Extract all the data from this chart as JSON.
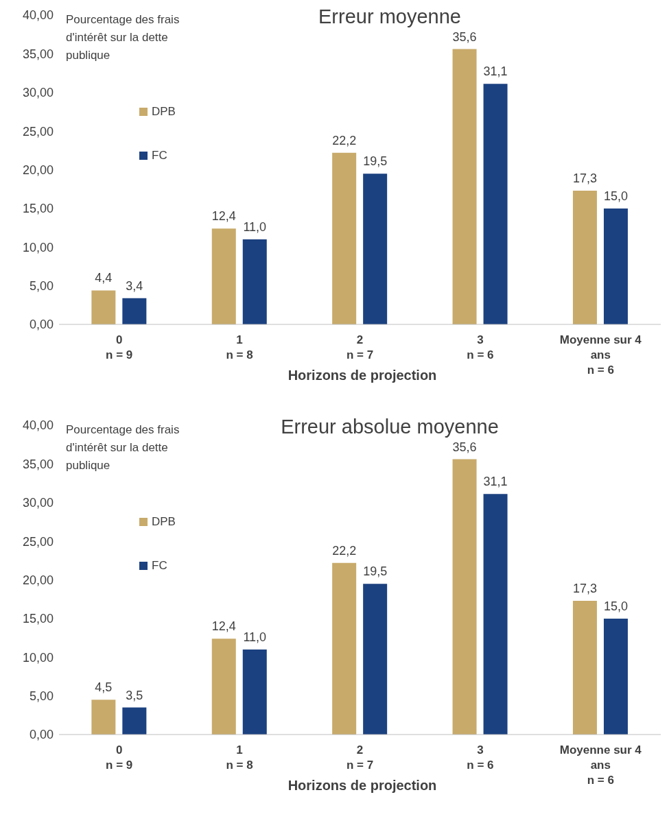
{
  "chart_data": [
    {
      "type": "bar",
      "title": "Erreur moyenne",
      "ylabel": "Pourcentage des frais d'intérêt sur la dette publique",
      "xlabel": "Horizons de projection",
      "categories": [
        "0\nn = 9",
        "1\nn = 8",
        "2\nn = 7",
        "3\nn = 6",
        "Moyenne sur 4 ans\nn = 6"
      ],
      "ylim": [
        0,
        40
      ],
      "yticks": [
        {
          "value": 0,
          "label": "0,00"
        },
        {
          "value": 5,
          "label": "5,00"
        },
        {
          "value": 10,
          "label": "10,00"
        },
        {
          "value": 15,
          "label": "15,00"
        },
        {
          "value": 20,
          "label": "20,00"
        },
        {
          "value": 25,
          "label": "25,00"
        },
        {
          "value": 30,
          "label": "30,00"
        },
        {
          "value": 35,
          "label": "35,00"
        },
        {
          "value": 40,
          "label": "40,00"
        }
      ],
      "legend": "top left",
      "series": [
        {
          "name": "DPB",
          "color": "#c8aa6a",
          "values": [
            4.4,
            12.4,
            22.2,
            35.6,
            17.3
          ],
          "value_labels": [
            "4,4",
            "12,4",
            "22,2",
            "35,6",
            "17,3"
          ]
        },
        {
          "name": "FC",
          "color": "#1b4180",
          "values": [
            3.4,
            11.0,
            19.5,
            31.1,
            15.0
          ],
          "value_labels": [
            "3,4",
            "11,0",
            "19,5",
            "31,1",
            "15,0"
          ]
        }
      ]
    },
    {
      "type": "bar",
      "title": "Erreur absolue moyenne",
      "ylabel": "Pourcentage des frais d'intérêt sur la dette publique",
      "xlabel": "Horizons de projection",
      "categories": [
        "0\nn = 9",
        "1\nn = 8",
        "2\nn = 7",
        "3\nn = 6",
        "Moyenne sur 4 ans\nn = 6"
      ],
      "ylim": [
        0,
        40
      ],
      "yticks": [
        {
          "value": 0,
          "label": "0,00"
        },
        {
          "value": 5,
          "label": "5,00"
        },
        {
          "value": 10,
          "label": "10,00"
        },
        {
          "value": 15,
          "label": "15,00"
        },
        {
          "value": 20,
          "label": "20,00"
        },
        {
          "value": 25,
          "label": "25,00"
        },
        {
          "value": 30,
          "label": "30,00"
        },
        {
          "value": 35,
          "label": "35,00"
        },
        {
          "value": 40,
          "label": "40,00"
        }
      ],
      "legend": "top left",
      "series": [
        {
          "name": "DPB",
          "color": "#c8aa6a",
          "values": [
            4.5,
            12.4,
            22.2,
            35.6,
            17.3
          ],
          "value_labels": [
            "4,5",
            "12,4",
            "22,2",
            "35,6",
            "17,3"
          ]
        },
        {
          "name": "FC",
          "color": "#1b4180",
          "values": [
            3.5,
            11.0,
            19.5,
            31.1,
            15.0
          ],
          "value_labels": [
            "3,5",
            "11,0",
            "19,5",
            "31,1",
            "15,0"
          ]
        }
      ]
    }
  ]
}
